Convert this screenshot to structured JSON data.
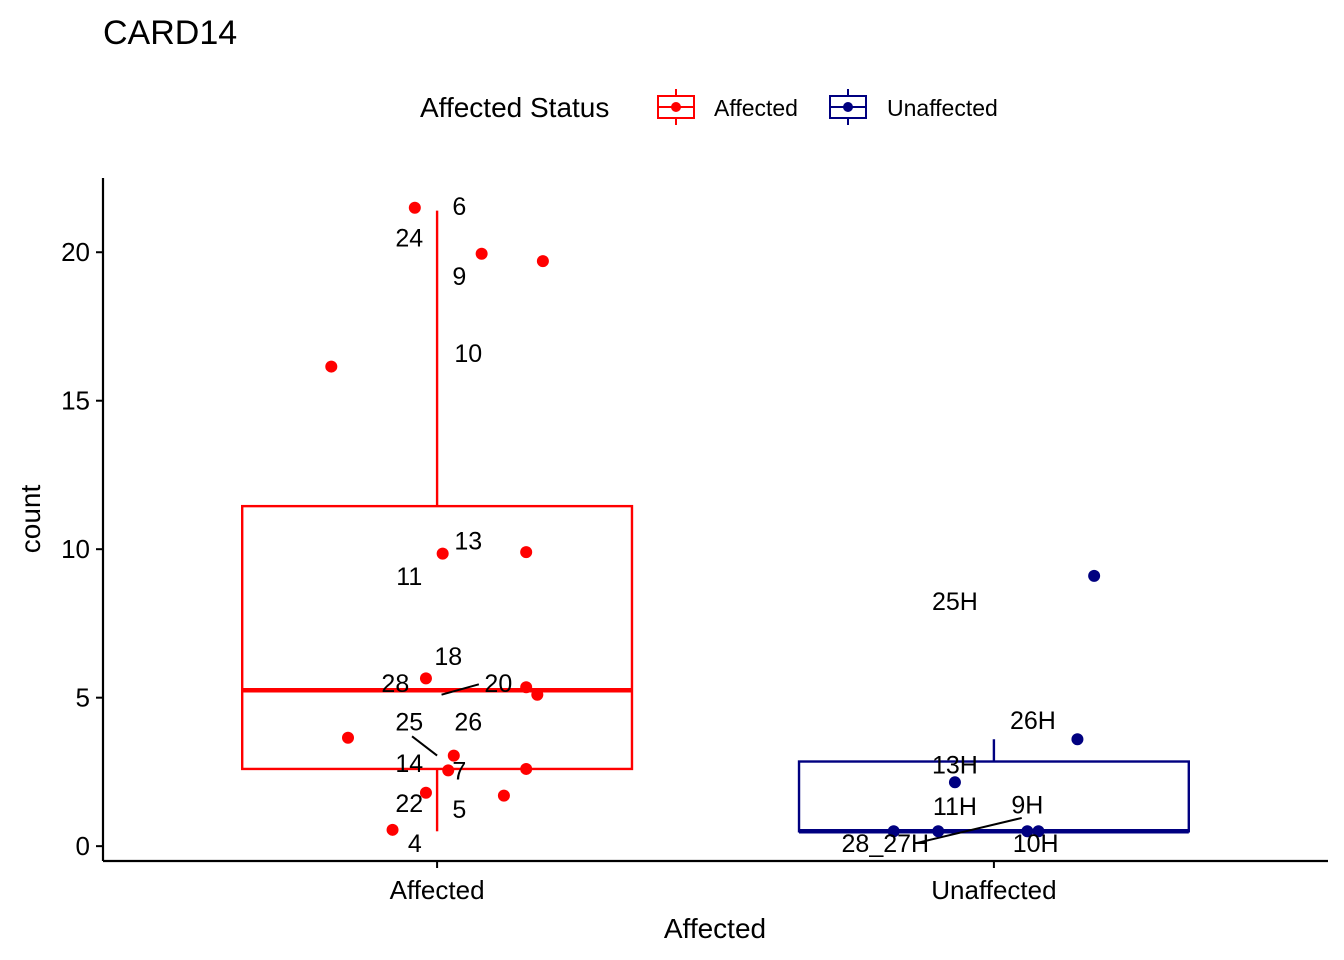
{
  "chart_data": {
    "type": "boxplot",
    "title": "CARD14",
    "xlabel": "Affected",
    "ylabel": "count",
    "ylim": [
      -0.5,
      22.5
    ],
    "yticks": [
      0,
      5,
      10,
      15,
      20
    ],
    "categories": [
      "Affected",
      "Unaffected"
    ],
    "legend": {
      "title": "Affected Status",
      "position": "top",
      "entries": [
        {
          "label": "Affected",
          "color": "#FF0000"
        },
        {
          "label": "Unaffected",
          "color": "#000080"
        }
      ]
    },
    "boxes": [
      {
        "group": "Affected",
        "color": "#FF0000",
        "lower_whisker": 0.5,
        "q1": 2.6,
        "median": 5.25,
        "q3": 11.45,
        "upper_whisker": 21.4
      },
      {
        "group": "Unaffected",
        "color": "#000080",
        "lower_whisker": 0.5,
        "q1": 0.5,
        "median": 0.5,
        "q3": 2.85,
        "upper_whisker": 3.6
      }
    ],
    "points": [
      {
        "group": "Affected",
        "offset": -0.04,
        "y": 21.5,
        "label": "6"
      },
      {
        "group": "Affected",
        "offset": 0.08,
        "y": 19.95,
        "label": "24"
      },
      {
        "group": "Affected",
        "offset": 0.19,
        "y": 19.7,
        "label": "9"
      },
      {
        "group": "Affected",
        "offset": -0.19,
        "y": 16.15,
        "label": "10"
      },
      {
        "group": "Affected",
        "offset": 0.01,
        "y": 9.85,
        "label": "13"
      },
      {
        "group": "Affected",
        "offset": 0.16,
        "y": 9.9,
        "label": "11"
      },
      {
        "group": "Affected",
        "offset": -0.02,
        "y": 5.65,
        "label": "18"
      },
      {
        "group": "Affected",
        "offset": 0.16,
        "y": 5.35,
        "label": "28"
      },
      {
        "group": "Affected",
        "offset": 0.18,
        "y": 5.1,
        "label": "20"
      },
      {
        "group": "Affected",
        "offset": -0.16,
        "y": 3.65,
        "label": "25"
      },
      {
        "group": "Affected",
        "offset": 0.03,
        "y": 3.05,
        "label": "26"
      },
      {
        "group": "Affected",
        "offset": 0.02,
        "y": 2.55,
        "label": "14"
      },
      {
        "group": "Affected",
        "offset": 0.16,
        "y": 2.6,
        "label": "7"
      },
      {
        "group": "Affected",
        "offset": -0.02,
        "y": 1.8,
        "label": "22"
      },
      {
        "group": "Affected",
        "offset": 0.12,
        "y": 1.7,
        "label": "5"
      },
      {
        "group": "Affected",
        "offset": -0.08,
        "y": 0.55,
        "label": "4"
      },
      {
        "group": "Unaffected",
        "offset": 0.18,
        "y": 9.1,
        "label": "25H"
      },
      {
        "group": "Unaffected",
        "offset": 0.15,
        "y": 3.6,
        "label": "26H"
      },
      {
        "group": "Unaffected",
        "offset": -0.07,
        "y": 2.15,
        "label": "13H"
      },
      {
        "group": "Unaffected",
        "offset": -0.1,
        "y": 0.5,
        "label": "11H"
      },
      {
        "group": "Unaffected",
        "offset": 0.06,
        "y": 0.5,
        "label": "9H"
      },
      {
        "group": "Unaffected",
        "offset": 0.08,
        "y": 0.5,
        "label": "10H"
      },
      {
        "group": "Unaffected",
        "offset": -0.18,
        "y": 0.5,
        "label": "28_27H"
      }
    ],
    "point_labels": [
      {
        "text": "6",
        "group": "Affected",
        "dx": 0.04,
        "y": 21.55
      },
      {
        "text": "24",
        "group": "Affected",
        "dx": -0.05,
        "y": 20.5
      },
      {
        "text": "9",
        "group": "Affected",
        "dx": 0.04,
        "y": 19.2
      },
      {
        "text": "10",
        "group": "Affected",
        "dx": 0.056,
        "y": 16.6
      },
      {
        "text": "13",
        "group": "Affected",
        "dx": 0.056,
        "y": 10.3
      },
      {
        "text": "11",
        "group": "Affected",
        "dx": -0.05,
        "y": 9.1
      },
      {
        "text": "18",
        "group": "Affected",
        "dx": 0.02,
        "y": 6.4
      },
      {
        "text": "28",
        "group": "Affected",
        "dx": -0.075,
        "y": 5.5
      },
      {
        "text": "20",
        "group": "Affected",
        "dx": 0.11,
        "y": 5.5
      },
      {
        "text": "25",
        "group": "Affected",
        "dx": -0.05,
        "y": 4.2
      },
      {
        "text": "26",
        "group": "Affected",
        "dx": 0.056,
        "y": 4.2
      },
      {
        "text": "14",
        "group": "Affected",
        "dx": -0.05,
        "y": 2.8
      },
      {
        "text": "7",
        "group": "Affected",
        "dx": 0.04,
        "y": 2.55
      },
      {
        "text": "22",
        "group": "Affected",
        "dx": -0.05,
        "y": 1.45
      },
      {
        "text": "5",
        "group": "Affected",
        "dx": 0.04,
        "y": 1.25
      },
      {
        "text": "4",
        "group": "Affected",
        "dx": -0.04,
        "y": 0.1
      },
      {
        "text": "25H",
        "group": "Unaffected",
        "dx": -0.07,
        "y": 8.25
      },
      {
        "text": "26H",
        "group": "Unaffected",
        "dx": 0.07,
        "y": 4.25
      },
      {
        "text": "13H",
        "group": "Unaffected",
        "dx": -0.07,
        "y": 2.75
      },
      {
        "text": "11H",
        "group": "Unaffected",
        "dx": -0.07,
        "y": 1.35
      },
      {
        "text": "9H",
        "group": "Unaffected",
        "dx": 0.06,
        "y": 1.4
      },
      {
        "text": "10H",
        "group": "Unaffected",
        "dx": 0.075,
        "y": 0.1
      },
      {
        "text": "28_27H",
        "group": "Unaffected",
        "dx": -0.195,
        "y": 0.1
      }
    ],
    "label_leaders": [
      {
        "label": "20",
        "group": "Affected",
        "from": [
          0.008,
          5.1
        ],
        "to": [
          0.075,
          5.45
        ]
      },
      {
        "label": "25",
        "group": "Affected",
        "from": [
          -0.045,
          3.7
        ],
        "to": [
          0.0,
          3.05
        ]
      },
      {
        "label": "28_27H",
        "group": "Unaffected",
        "from": [
          -0.14,
          0.1
        ],
        "to": [
          0.05,
          0.95
        ]
      }
    ]
  }
}
